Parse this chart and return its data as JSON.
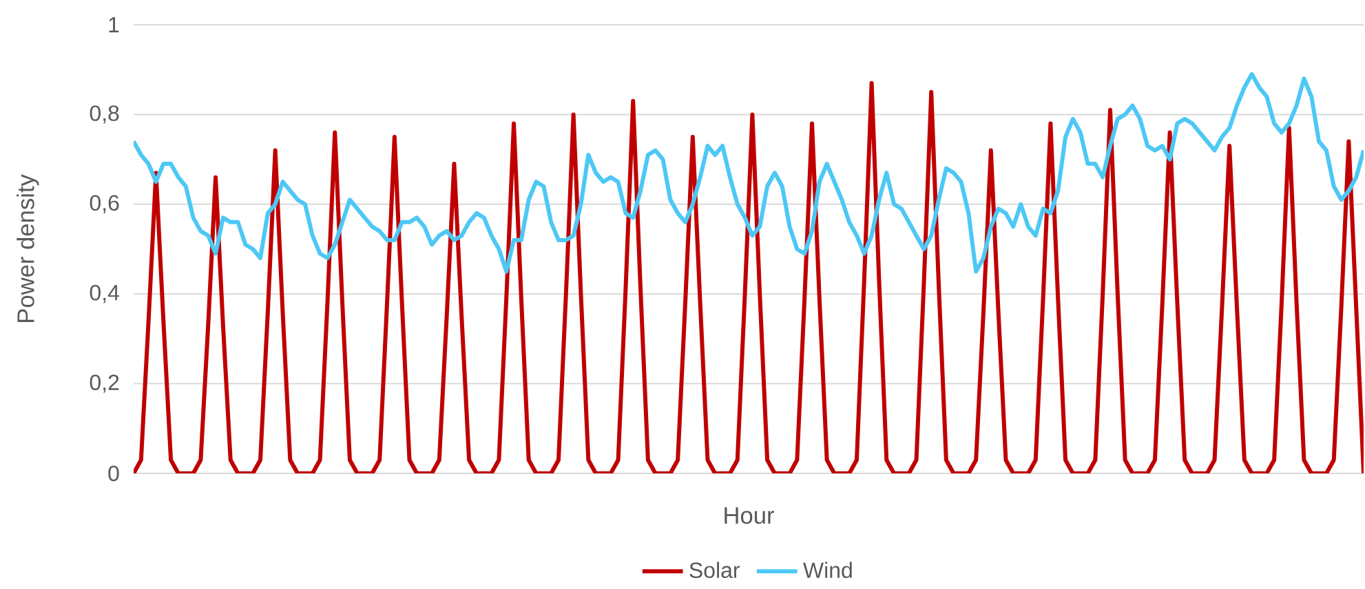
{
  "chart_data": {
    "type": "line",
    "xlabel": "Hour",
    "ylabel": "Power density",
    "categories": [
      null,
      null,
      null,
      null,
      null,
      null,
      null,
      null,
      null,
      null,
      null,
      null,
      null,
      null,
      null,
      null,
      null,
      null,
      null,
      null,
      null,
      null,
      null,
      null,
      null,
      null,
      null,
      null,
      null,
      null,
      null,
      null,
      null,
      null,
      null,
      null,
      null,
      null,
      null,
      null,
      null,
      null,
      null,
      null,
      null,
      null,
      null,
      null,
      null,
      null,
      null,
      null,
      null,
      null,
      null,
      null,
      null,
      null,
      null,
      null,
      null,
      null,
      null,
      null,
      null,
      null,
      null,
      null,
      null,
      null,
      null,
      null,
      null,
      null,
      null,
      null,
      null,
      null,
      null,
      null,
      null,
      null,
      null,
      null,
      null,
      null,
      null,
      null,
      null,
      null,
      null,
      null,
      null,
      null,
      null,
      null,
      null,
      null,
      null,
      null,
      null,
      null,
      null,
      null,
      null,
      null,
      null,
      null,
      null,
      null,
      null,
      null,
      null,
      null,
      null,
      null,
      null,
      null,
      null,
      null,
      null,
      null,
      null,
      null,
      null,
      null,
      null,
      null,
      null,
      null,
      null,
      null,
      null,
      null,
      null,
      null,
      null,
      null,
      null,
      null,
      null,
      null,
      null,
      null,
      null,
      null,
      null,
      null,
      null,
      null,
      null,
      null,
      null,
      null,
      null,
      null,
      null,
      null,
      null,
      null,
      null,
      null,
      null,
      null,
      null,
      null
    ],
    "series": [
      {
        "name": "Solar",
        "color": "#c00000",
        "values": [
          0,
          0.03,
          0.34,
          0.67,
          0.34,
          0.03,
          0,
          0,
          0,
          0.03,
          0.33,
          0.66,
          0.33,
          0.03,
          0,
          0,
          0,
          0.03,
          0.36,
          0.72,
          0.36,
          0.03,
          0,
          0,
          0,
          0.03,
          0.38,
          0.76,
          0.38,
          0.03,
          0,
          0,
          0,
          0.03,
          0.38,
          0.75,
          0.38,
          0.03,
          0,
          0,
          0,
          0.03,
          0.35,
          0.69,
          0.35,
          0.03,
          0,
          0,
          0,
          0.03,
          0.39,
          0.78,
          0.39,
          0.03,
          0,
          0,
          0,
          0.03,
          0.4,
          0.8,
          0.4,
          0.03,
          0,
          0,
          0,
          0.03,
          0.41,
          0.83,
          0.41,
          0.03,
          0,
          0,
          0,
          0.03,
          0.38,
          0.75,
          0.38,
          0.03,
          0,
          0,
          0,
          0.03,
          0.4,
          0.8,
          0.4,
          0.03,
          0,
          0,
          0,
          0.03,
          0.39,
          0.78,
          0.39,
          0.03,
          0,
          0,
          0,
          0.03,
          0.43,
          0.87,
          0.43,
          0.03,
          0,
          0,
          0,
          0.03,
          0.42,
          0.85,
          0.42,
          0.03,
          0,
          0,
          0,
          0.03,
          0.36,
          0.72,
          0.36,
          0.03,
          0,
          0,
          0,
          0.03,
          0.39,
          0.78,
          0.39,
          0.03,
          0,
          0,
          0,
          0.03,
          0.4,
          0.81,
          0.4,
          0.03,
          0,
          0,
          0,
          0.03,
          0.38,
          0.76,
          0.38,
          0.03,
          0,
          0,
          0,
          0.03,
          0.37,
          0.73,
          0.37,
          0.03,
          0,
          0,
          0,
          0.03,
          0.38,
          0.77,
          0.38,
          0.03,
          0,
          0,
          0,
          0.03,
          0.37,
          0.74,
          0.37,
          0
        ]
      },
      {
        "name": "Wind",
        "color": "#4dc8f5",
        "values": [
          0.74,
          0.71,
          0.69,
          0.65,
          0.69,
          0.69,
          0.66,
          0.64,
          0.57,
          0.54,
          0.53,
          0.49,
          0.57,
          0.56,
          0.56,
          0.51,
          0.5,
          0.48,
          0.58,
          0.6,
          0.65,
          0.63,
          0.61,
          0.6,
          0.53,
          0.49,
          0.48,
          0.51,
          0.56,
          0.61,
          0.59,
          0.57,
          0.55,
          0.54,
          0.52,
          0.52,
          0.56,
          0.56,
          0.57,
          0.55,
          0.51,
          0.53,
          0.54,
          0.52,
          0.53,
          0.56,
          0.58,
          0.57,
          0.53,
          0.5,
          0.45,
          0.52,
          0.52,
          0.61,
          0.65,
          0.64,
          0.56,
          0.52,
          0.52,
          0.53,
          0.6,
          0.71,
          0.67,
          0.65,
          0.66,
          0.65,
          0.58,
          0.57,
          0.63,
          0.71,
          0.72,
          0.7,
          0.61,
          0.58,
          0.56,
          0.6,
          0.66,
          0.73,
          0.71,
          0.73,
          0.66,
          0.6,
          0.57,
          0.53,
          0.55,
          0.64,
          0.67,
          0.64,
          0.55,
          0.5,
          0.49,
          0.54,
          0.65,
          0.69,
          0.65,
          0.61,
          0.56,
          0.53,
          0.49,
          0.53,
          0.61,
          0.67,
          0.6,
          0.59,
          0.56,
          0.53,
          0.5,
          0.53,
          0.61,
          0.68,
          0.67,
          0.65,
          0.58,
          0.45,
          0.48,
          0.55,
          0.59,
          0.58,
          0.55,
          0.6,
          0.55,
          0.53,
          0.59,
          0.58,
          0.63,
          0.75,
          0.79,
          0.76,
          0.69,
          0.69,
          0.66,
          0.73,
          0.79,
          0.8,
          0.82,
          0.79,
          0.73,
          0.72,
          0.73,
          0.7,
          0.78,
          0.79,
          0.78,
          0.76,
          0.74,
          0.72,
          0.75,
          0.77,
          0.82,
          0.86,
          0.89,
          0.86,
          0.84,
          0.78,
          0.76,
          0.78,
          0.82,
          0.88,
          0.84,
          0.74,
          0.72,
          0.64,
          0.61,
          0.63,
          0.66,
          0.72
        ]
      }
    ],
    "ylim": [
      0,
      1
    ],
    "yticks": [
      0,
      {
        "value": 0.2,
        "label": "0,2"
      },
      {
        "value": 0.4,
        "label": "0,4"
      },
      {
        "value": 0.6,
        "label": "0,6"
      },
      {
        "value": 0.8,
        "label": "0,8"
      },
      1
    ],
    "grid": "y",
    "legend": "bottom",
    "marker": "none",
    "line_style": "solid"
  }
}
